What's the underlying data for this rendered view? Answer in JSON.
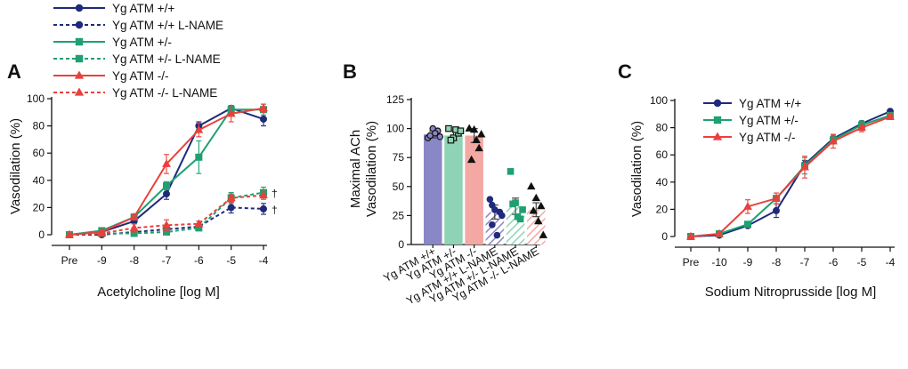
{
  "figure": {
    "top_legend": [
      {
        "label": "Yg ATM +/+",
        "color": "#1f2a7a",
        "marker": "circle",
        "dashed": false
      },
      {
        "label": "Yg ATM +/+ L-NAME",
        "color": "#1f2a7a",
        "marker": "circle",
        "dashed": true
      },
      {
        "label": "Yg ATM +/-",
        "color": "#1fa070",
        "marker": "square",
        "dashed": false
      },
      {
        "label": "Yg ATM +/- L-NAME",
        "color": "#1fa070",
        "marker": "square",
        "dashed": true
      },
      {
        "label": "Yg ATM -/-",
        "color": "#e8413c",
        "marker": "triangle",
        "dashed": false
      },
      {
        "label": "Yg ATM -/- L-NAME",
        "color": "#e8413c",
        "marker": "triangle",
        "dashed": true
      }
    ]
  },
  "chart_data": [
    {
      "panel": "A",
      "type": "line",
      "xlabel": "Acetylcholine [log M]",
      "ylabel": "Vasodilation (%)",
      "categories": [
        "Pre",
        "-9",
        "-8",
        "-7",
        "-6",
        "-5",
        "-4"
      ],
      "ylim": [
        0,
        100
      ],
      "yticks": [
        "0",
        "20",
        "40",
        "60",
        "80",
        "100"
      ],
      "series": [
        {
          "name": "Yg ATM +/+",
          "color": "#1f2a7a",
          "marker": "circle",
          "dashed": false,
          "values": [
            0,
            2,
            10,
            30,
            80,
            93,
            85
          ],
          "errors": [
            0,
            1,
            2,
            4,
            3,
            2,
            5
          ]
        },
        {
          "name": "Yg ATM +/+ L-NAME",
          "color": "#1f2a7a",
          "marker": "circle",
          "dashed": true,
          "values": [
            0,
            0,
            2,
            4,
            6,
            20,
            19
          ],
          "errors": [
            0,
            1,
            1,
            2,
            2,
            4,
            4
          ]
        },
        {
          "name": "Yg ATM +/-",
          "color": "#1fa070",
          "marker": "square",
          "dashed": false,
          "values": [
            0,
            3,
            13,
            36,
            57,
            92,
            92
          ],
          "errors": [
            0,
            1,
            2,
            3,
            12,
            3,
            4
          ]
        },
        {
          "name": "Yg ATM +/- L-NAME",
          "color": "#1fa070",
          "marker": "square",
          "dashed": true,
          "values": [
            0,
            1,
            1,
            2,
            5,
            27,
            31
          ],
          "errors": [
            0,
            1,
            1,
            1,
            2,
            4,
            4
          ]
        },
        {
          "name": "Yg ATM -/-",
          "color": "#e8413c",
          "marker": "triangle",
          "dashed": false,
          "values": [
            0,
            2,
            13,
            52,
            77,
            89,
            93
          ],
          "errors": [
            0,
            1,
            2,
            7,
            5,
            6,
            3
          ]
        },
        {
          "name": "Yg ATM -/- L-NAME",
          "color": "#e8413c",
          "marker": "triangle",
          "dashed": true,
          "values": [
            0,
            1,
            5,
            7,
            8,
            27,
            29
          ],
          "errors": [
            0,
            1,
            3,
            4,
            2,
            3,
            3
          ]
        }
      ],
      "annotations": [
        {
          "text": "†",
          "series": "Yg ATM +/- L-NAME",
          "at": "-4"
        },
        {
          "text": "†",
          "series": "Yg ATM +/+ L-NAME",
          "at": "-4"
        }
      ]
    },
    {
      "panel": "B",
      "type": "bar",
      "ylabel_lines": [
        "Maximal ACh",
        "Vasodilation (%)"
      ],
      "ylim": [
        0,
        125
      ],
      "yticks": [
        "0",
        "25",
        "50",
        "75",
        "100",
        "125"
      ],
      "categories": [
        "Yg ATM +/+",
        "Yg ATM +/-",
        "Yg ATM -/-",
        "Yg ATM +/+ L-NAME",
        "Yg ATM +/- L-NAME",
        "Yg ATM -/- L-NAME"
      ],
      "values": [
        95,
        94,
        94,
        28,
        33,
        30
      ],
      "errors": [
        3,
        4,
        6,
        6,
        7,
        6
      ],
      "bar_colors": [
        "#8a87c6",
        "#8ed4b4",
        "#f4a8a3",
        "#8a87c6",
        "#8ed4b4",
        "#f4a8a3"
      ],
      "point_colors": [
        "#1f2a7a",
        "#1fa070",
        "#e8413c",
        "#1f2a7a",
        "#1fa070",
        "#e8413c"
      ],
      "hatched": [
        false,
        false,
        false,
        true,
        true,
        true
      ],
      "markers": [
        "circle",
        "square",
        "triangle",
        "circle",
        "square",
        "triangle"
      ],
      "points": [
        [
          92,
          100,
          98,
          94,
          96,
          93
        ],
        [
          100,
          92,
          96,
          90,
          99,
          98
        ],
        [
          100,
          99,
          83,
          73,
          90,
          95
        ],
        [
          39,
          30,
          28,
          17,
          8,
          25,
          34
        ],
        [
          63,
          36,
          22,
          35,
          24,
          30
        ],
        [
          50,
          40,
          33,
          29,
          20,
          8
        ]
      ]
    },
    {
      "panel": "C",
      "type": "line",
      "xlabel": "Sodium Nitroprusside [log M]",
      "ylabel": "Vasodilation (%)",
      "categories": [
        "Pre",
        "-10",
        "-9",
        "-8",
        "-7",
        "-6",
        "-5",
        "-4"
      ],
      "ylim": [
        0,
        100
      ],
      "yticks": [
        "0",
        "20",
        "40",
        "60",
        "80",
        "100"
      ],
      "legend": [
        "Yg ATM +/+",
        "Yg ATM +/-",
        "Yg ATM -/-"
      ],
      "series": [
        {
          "name": "Yg ATM +/+",
          "color": "#1f2a7a",
          "marker": "circle",
          "dashed": false,
          "values": [
            0,
            1,
            8,
            19,
            53,
            72,
            83,
            92
          ],
          "errors": [
            0,
            1,
            1,
            5,
            3,
            3,
            2,
            1
          ]
        },
        {
          "name": "Yg ATM +/-",
          "color": "#1fa070",
          "marker": "square",
          "dashed": false,
          "values": [
            0,
            2,
            9,
            28,
            52,
            71,
            82,
            89
          ],
          "errors": [
            0,
            1,
            2,
            4,
            6,
            3,
            3,
            2
          ]
        },
        {
          "name": "Yg ATM -/-",
          "color": "#e8413c",
          "marker": "triangle",
          "dashed": false,
          "values": [
            0,
            2,
            22,
            28,
            51,
            70,
            80,
            88
          ],
          "errors": [
            0,
            1,
            5,
            4,
            8,
            5,
            3,
            2
          ]
        }
      ]
    }
  ]
}
